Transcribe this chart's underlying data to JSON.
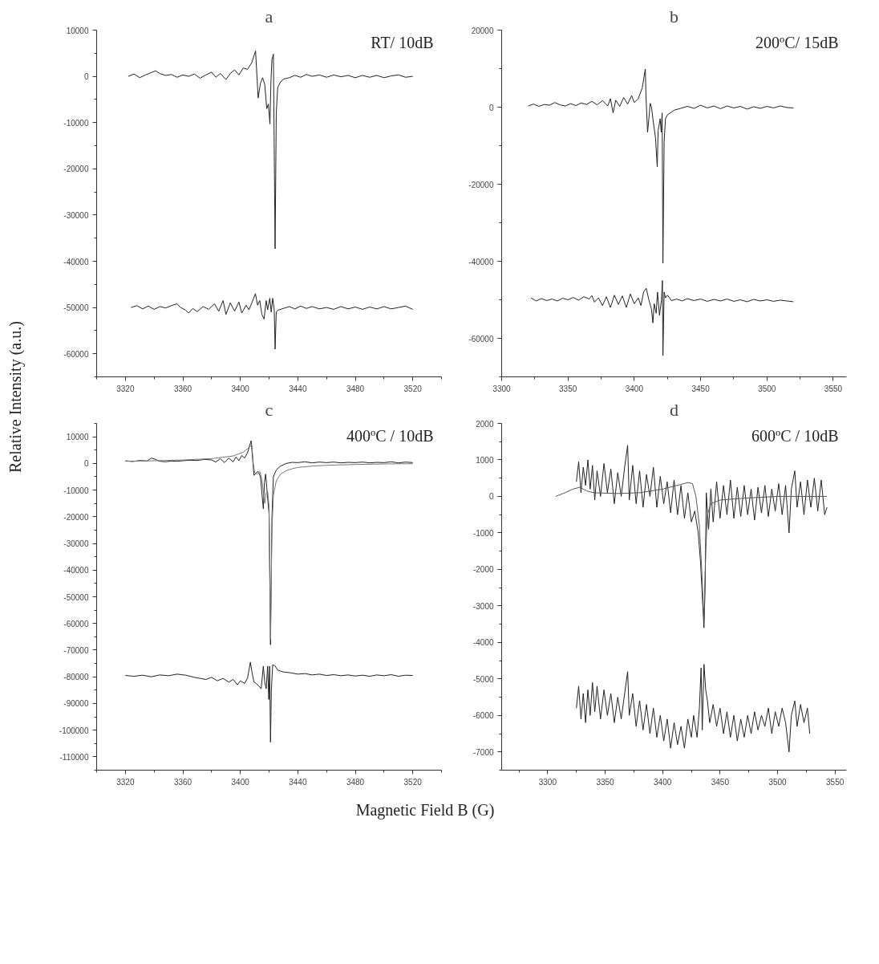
{
  "chart_data": [
    {
      "type": "line",
      "title": "a",
      "ylabel": "Relative Intensity (a.u.)",
      "annotations": [
        "RT/ 10dB"
      ],
      "xlim": [
        3300,
        3540
      ],
      "xticks": [
        3320,
        3360,
        3400,
        3440,
        3480,
        3520
      ],
      "ylim": [
        -65000,
        10000
      ],
      "yticks": [
        -60000,
        -50000,
        -40000,
        -30000,
        -20000,
        -10000,
        0,
        10000
      ],
      "series": [
        {
          "color": "#222222",
          "x": [
            3322,
            3326,
            3330,
            3334,
            3338,
            3341,
            3344,
            3348,
            3352,
            3356,
            3360,
            3364,
            3368,
            3372,
            3376,
            3380,
            3383,
            3386,
            3390,
            3393,
            3396,
            3399,
            3402,
            3405,
            3408,
            3410.6,
            3412.4,
            3414,
            3415.5,
            3417,
            3418.4,
            3419.5,
            3420.6,
            3421.3,
            3422,
            3423,
            3424.2,
            3425,
            3426,
            3428,
            3430,
            3434,
            3438,
            3442,
            3446,
            3450,
            3455,
            3460,
            3465,
            3470,
            3475,
            3480,
            3485,
            3490,
            3495,
            3500,
            3505,
            3510,
            3515,
            3520
          ],
          "values": [
            0,
            500,
            -300,
            300,
            800,
            1200,
            600,
            200,
            400,
            -200,
            300,
            0,
            500,
            -400,
            300,
            900,
            -200,
            600,
            -700,
            600,
            1400,
            300,
            1800,
            1500,
            3000,
            5500,
            -4700,
            -1500,
            -300,
            -1800,
            -7000,
            -6000,
            -10300,
            -1000,
            3600,
            4800,
            -37300,
            -8000,
            -2400,
            -1200,
            -600,
            -300,
            200,
            -200,
            400,
            0,
            300,
            -200,
            300,
            -100,
            200,
            -300,
            200,
            -200,
            200,
            -300,
            100,
            300,
            -200,
            0
          ]
        },
        {
          "color": "#222222",
          "x": [
            3324,
            3328,
            3332,
            3336,
            3340,
            3344,
            3348,
            3352,
            3356,
            3358,
            3362,
            3364,
            3367,
            3370,
            3374,
            3378,
            3382,
            3385,
            3388,
            3390,
            3393,
            3396,
            3399,
            3401,
            3404,
            3406,
            3408,
            3410.5,
            3412,
            3413.5,
            3415,
            3416.5,
            3418,
            3419,
            3420.5,
            3421.5,
            3422.5,
            3423.6,
            3424.2,
            3425,
            3426,
            3430,
            3434,
            3438,
            3442,
            3446,
            3450,
            3455,
            3460,
            3465,
            3470,
            3475,
            3480,
            3485,
            3490,
            3495,
            3500,
            3505,
            3510,
            3515,
            3520
          ],
          "values": [
            -50000,
            -49600,
            -50300,
            -49700,
            -50400,
            -49800,
            -50100,
            -49600,
            -49200,
            -49900,
            -50600,
            -51200,
            -50200,
            -50900,
            -49800,
            -50400,
            -49200,
            -50800,
            -48500,
            -51500,
            -49000,
            -50800,
            -48800,
            -51200,
            -49500,
            -50500,
            -49000,
            -47000,
            -49500,
            -48500,
            -51500,
            -52500,
            -48500,
            -50500,
            -48000,
            -51000,
            -48000,
            -50500,
            -59000,
            -51000,
            -50600,
            -50200,
            -49800,
            -50300,
            -49700,
            -50200,
            -49800,
            -50300,
            -50000,
            -50400,
            -49800,
            -50300,
            -49900,
            -50400,
            -49900,
            -50300,
            -49800,
            -50300,
            -50000,
            -49700,
            -50400
          ]
        }
      ]
    },
    {
      "type": "line",
      "title": "b",
      "annotations": [
        "200ºC/ 15dB"
      ],
      "xlim": [
        3300,
        3560
      ],
      "xticks": [
        3300,
        3350,
        3400,
        3450,
        3500,
        3550
      ],
      "ylim": [
        -70000,
        20000
      ],
      "yticks": [
        -60000,
        -40000,
        -20000,
        0,
        20000
      ],
      "series": [
        {
          "color": "#222222",
          "x": [
            3320,
            3324,
            3328,
            3332,
            3336,
            3340,
            3344,
            3348,
            3352,
            3356,
            3360,
            3364,
            3368,
            3372,
            3376,
            3380,
            3382,
            3384,
            3386,
            3389,
            3392,
            3395,
            3398,
            3400,
            3403,
            3406,
            3408.3,
            3408.8,
            3410,
            3411,
            3412,
            3413,
            3414,
            3416,
            3417.3,
            3418,
            3419.5,
            3420.3,
            3421,
            3421.6,
            3422.5,
            3423.5,
            3425,
            3430,
            3435,
            3440,
            3445,
            3450,
            3455,
            3460,
            3465,
            3470,
            3475,
            3480,
            3485,
            3490,
            3495,
            3500,
            3505,
            3510,
            3515,
            3520
          ],
          "values": [
            300,
            800,
            200,
            700,
            500,
            1200,
            600,
            300,
            900,
            400,
            1100,
            700,
            1500,
            600,
            1700,
            300,
            2200,
            -1500,
            1800,
            200,
            2500,
            800,
            3000,
            1200,
            2200,
            5000,
            9900,
            3000,
            -6500,
            -3000,
            1000,
            0,
            -3000,
            -8000,
            -15500,
            -6000,
            -3000,
            -6500,
            -1500,
            -40500,
            -9000,
            -3000,
            -2000,
            -800,
            -300,
            200,
            -300,
            500,
            -200,
            300,
            -400,
            300,
            -200,
            200,
            -500,
            100,
            -300,
            200,
            -200,
            300,
            -100,
            -200
          ]
        },
        {
          "color": "#222222",
          "x": [
            3322,
            3326,
            3330,
            3334,
            3338,
            3342,
            3346,
            3350,
            3354,
            3358,
            3362,
            3366,
            3368,
            3370,
            3373,
            3376,
            3379,
            3382,
            3385,
            3388,
            3391,
            3394,
            3397,
            3400,
            3403,
            3405,
            3407,
            3409,
            3411,
            3413,
            3414,
            3415,
            3416.5,
            3417.5,
            3419,
            3420.5,
            3421.2,
            3421.6,
            3422.5,
            3423.5,
            3425,
            3428,
            3432,
            3436,
            3440,
            3445,
            3450,
            3455,
            3460,
            3465,
            3470,
            3475,
            3480,
            3485,
            3490,
            3495,
            3500,
            3505,
            3510,
            3515,
            3520
          ],
          "values": [
            -49500,
            -50300,
            -49700,
            -50200,
            -49800,
            -50300,
            -49600,
            -50000,
            -49400,
            -50100,
            -49200,
            -49800,
            -48900,
            -50600,
            -49500,
            -51500,
            -49200,
            -52000,
            -48800,
            -51200,
            -49000,
            -52000,
            -48500,
            -51000,
            -49500,
            -51500,
            -48000,
            -47000,
            -50000,
            -52500,
            -56000,
            -51000,
            -53500,
            -48000,
            -54000,
            -50000,
            -45000,
            -64500,
            -48000,
            -49500,
            -48800,
            -50200,
            -49800,
            -50300,
            -49700,
            -50200,
            -49800,
            -50400,
            -49900,
            -50300,
            -49800,
            -50400,
            -50000,
            -50500,
            -49900,
            -50300,
            -50000,
            -50400,
            -50100,
            -50300,
            -50500
          ]
        }
      ]
    },
    {
      "type": "line",
      "title": "c",
      "annotations": [
        "400ºC / 10dB"
      ],
      "xlim": [
        3300,
        3540
      ],
      "xticks": [
        3320,
        3360,
        3400,
        3440,
        3480,
        3520
      ],
      "ylim": [
        -115000,
        15000
      ],
      "yticks": [
        -110000,
        -100000,
        -90000,
        -80000,
        -70000,
        -60000,
        -50000,
        -40000,
        -30000,
        -20000,
        -10000,
        0,
        10000
      ],
      "series": [
        {
          "color": "#222222",
          "x": [
            3320,
            3325,
            3330,
            3335,
            3338,
            3341,
            3344,
            3348,
            3352,
            3356,
            3360,
            3365,
            3370,
            3375,
            3380,
            3383,
            3386,
            3389,
            3392,
            3395,
            3397,
            3399,
            3401,
            3403,
            3405,
            3407.5,
            3409.5,
            3411,
            3412.3,
            3414,
            3416,
            3416.8,
            3417.6,
            3418.4,
            3419,
            3420,
            3421,
            3422,
            3423,
            3425,
            3428,
            3432,
            3436,
            3440,
            3445,
            3450,
            3455,
            3460,
            3465,
            3470,
            3475,
            3480,
            3485,
            3490,
            3495,
            3500,
            3505,
            3510,
            3515,
            3520
          ],
          "values": [
            1000,
            700,
            1100,
            900,
            2000,
            1500,
            800,
            600,
            900,
            800,
            1000,
            1200,
            1100,
            1500,
            1300,
            500,
            1800,
            300,
            2000,
            600,
            2400,
            1000,
            3000,
            2000,
            4000,
            8500,
            -4500,
            -3500,
            -3000,
            -5000,
            -17000,
            -7000,
            -4000,
            -9000,
            -13000,
            -19000,
            -68000,
            -20000,
            -5000,
            -2500,
            -1000,
            0,
            400,
            300,
            600,
            200,
            500,
            300,
            500,
            200,
            400,
            300,
            500,
            200,
            400,
            300,
            600,
            200,
            500,
            300
          ]
        },
        {
          "color": "#777777",
          "x": [
            3320,
            3340,
            3360,
            3380,
            3395,
            3402,
            3406,
            3408,
            3409,
            3410,
            3412,
            3413.5,
            3415,
            3417,
            3418,
            3419,
            3420,
            3421,
            3422,
            3423,
            3425,
            3428,
            3432,
            3436,
            3440,
            3450,
            3460,
            3480,
            3500,
            3520
          ],
          "values": [
            800,
            1000,
            1300,
            1800,
            2800,
            4200,
            6000,
            7000,
            0,
            -3500,
            -4000,
            -3000,
            -6000,
            -15000,
            -11000,
            -10500,
            -16000,
            -66000,
            -25000,
            -12000,
            -6500,
            -4000,
            -2700,
            -2000,
            -1500,
            -1000,
            -700,
            -400,
            -200,
            -100
          ]
        },
        {
          "color": "#222222",
          "x": [
            3320,
            3326,
            3332,
            3338,
            3344,
            3350,
            3356,
            3362,
            3368,
            3372,
            3376,
            3380,
            3384,
            3388,
            3392,
            3395,
            3398,
            3400,
            3403,
            3405,
            3407,
            3408,
            3409.5,
            3411,
            3413,
            3414.5,
            3416,
            3417,
            3418,
            3419,
            3419.8,
            3420.4,
            3421,
            3421.6,
            3422.5,
            3424,
            3426,
            3430,
            3435,
            3440,
            3445,
            3450,
            3455,
            3460,
            3465,
            3470,
            3475,
            3480,
            3485,
            3490,
            3495,
            3500,
            3505,
            3510,
            3515,
            3520
          ],
          "values": [
            -79500,
            -79800,
            -79400,
            -80000,
            -79300,
            -79600,
            -79000,
            -79400,
            -80200,
            -80600,
            -81000,
            -80200,
            -81500,
            -80600,
            -82000,
            -81000,
            -83000,
            -81500,
            -82500,
            -80500,
            -74500,
            -78000,
            -82000,
            -82500,
            -83500,
            -84500,
            -76000,
            -82000,
            -84500,
            -76000,
            -88500,
            -76000,
            -104500,
            -85000,
            -75500,
            -75800,
            -77500,
            -78200,
            -78500,
            -79000,
            -78800,
            -79300,
            -79000,
            -79500,
            -79200,
            -79600,
            -79300,
            -79700,
            -79400,
            -79800,
            -79300,
            -79600,
            -79200,
            -79800,
            -79400,
            -79500
          ]
        }
      ]
    },
    {
      "type": "line",
      "title": "d",
      "xlabel": "Magnetic Field B (G)",
      "annotations": [
        "600ºC / 10dB"
      ],
      "xlim": [
        3260,
        3560
      ],
      "xticks": [
        3300,
        3350,
        3400,
        3450,
        3500,
        3550
      ],
      "ylim": [
        -7500,
        2000
      ],
      "yticks": [
        -7000,
        -6000,
        -5000,
        -4000,
        -3000,
        -2000,
        -1000,
        0,
        1000,
        2000
      ],
      "series": [
        {
          "color": "#222222",
          "x": [
            3325,
            3327,
            3329,
            3331,
            3333,
            3335,
            3337,
            3339,
            3341,
            3343,
            3346,
            3349,
            3352,
            3355,
            3358,
            3361,
            3364,
            3367,
            3369.6,
            3371,
            3374,
            3377,
            3380,
            3383,
            3386,
            3389,
            3392,
            3395,
            3398,
            3401,
            3404,
            3407,
            3410,
            3413,
            3416,
            3419,
            3422,
            3425,
            3428,
            3431,
            3433,
            3435,
            3436,
            3437,
            3438,
            3440,
            3442,
            3444,
            3447,
            3450,
            3453,
            3456,
            3459,
            3462,
            3465,
            3468,
            3471,
            3474,
            3477,
            3480,
            3483,
            3486,
            3489,
            3492,
            3495,
            3498,
            3501,
            3504,
            3507,
            3510,
            3512,
            3515,
            3517,
            3520,
            3523,
            3526,
            3529,
            3532,
            3535,
            3538,
            3541,
            3543
          ],
          "values": [
            400,
            950,
            100,
            800,
            300,
            1000,
            200,
            850,
            -100,
            700,
            0,
            900,
            100,
            750,
            -200,
            650,
            0,
            800,
            1400,
            -100,
            850,
            -200,
            700,
            -300,
            600,
            0,
            800,
            -300,
            550,
            -200,
            400,
            -450,
            450,
            -500,
            300,
            -600,
            100,
            -700,
            -400,
            -1000,
            -1800,
            -3000,
            -3600,
            -2500,
            100,
            -900,
            200,
            -700,
            400,
            -600,
            300,
            -500,
            450,
            -600,
            250,
            -550,
            300,
            -500,
            200,
            -650,
            250,
            -450,
            300,
            -550,
            200,
            -400,
            350,
            -500,
            300,
            -1000,
            200,
            700,
            -300,
            400,
            -500,
            450,
            -300,
            500,
            -400,
            450,
            -500,
            -300
          ]
        },
        {
          "color": "#555555",
          "x": [
            3307,
            3315,
            3322,
            3328,
            3334,
            3340,
            3360,
            3380,
            3400,
            3415,
            3422,
            3426,
            3429,
            3432,
            3434,
            3436,
            3437.5,
            3439,
            3442,
            3450,
            3470,
            3500,
            3520,
            3543
          ],
          "values": [
            0,
            100,
            200,
            250,
            150,
            100,
            80,
            100,
            200,
            320,
            380,
            350,
            0,
            -800,
            -2000,
            -3400,
            -1500,
            -500,
            -200,
            -100,
            -50,
            0,
            0,
            0
          ]
        },
        {
          "color": "#222222",
          "x": [
            3325,
            3327,
            3329,
            3331,
            3333,
            3335,
            3337,
            3339,
            3341,
            3343,
            3346,
            3349,
            3352,
            3355,
            3358,
            3361,
            3364,
            3367,
            3369.6,
            3371,
            3374,
            3377,
            3380,
            3383,
            3386,
            3389,
            3392,
            3395,
            3398,
            3401,
            3404,
            3407,
            3410,
            3413,
            3416,
            3419,
            3422,
            3425,
            3427,
            3430,
            3432,
            3433.5,
            3434.5,
            3436,
            3437.5,
            3439,
            3441,
            3444,
            3447,
            3450,
            3453,
            3456,
            3459,
            3462,
            3465,
            3468,
            3471,
            3474,
            3477,
            3480,
            3483,
            3486,
            3489,
            3492,
            3495,
            3498,
            3501,
            3504,
            3507,
            3510,
            3512,
            3515,
            3517,
            3520,
            3523,
            3526,
            3528
          ],
          "values": [
            -5800,
            -5200,
            -6100,
            -5400,
            -6200,
            -5300,
            -6000,
            -5100,
            -5900,
            -5200,
            -6100,
            -5300,
            -6000,
            -5400,
            -6200,
            -5500,
            -6100,
            -5400,
            -4800,
            -6000,
            -5400,
            -6300,
            -5600,
            -6400,
            -5700,
            -6500,
            -5800,
            -6600,
            -6000,
            -6700,
            -6100,
            -6900,
            -6200,
            -6800,
            -6300,
            -6900,
            -6100,
            -6600,
            -6000,
            -6600,
            -5800,
            -4700,
            -6400,
            -4600,
            -5300,
            -5600,
            -6200,
            -5700,
            -6300,
            -5800,
            -6500,
            -5900,
            -6600,
            -6000,
            -6700,
            -6100,
            -6600,
            -6000,
            -6500,
            -5900,
            -6400,
            -6000,
            -6300,
            -5800,
            -6500,
            -5900,
            -6300,
            -5800,
            -6200,
            -7000,
            -6000,
            -5600,
            -6300,
            -5700,
            -6200,
            -5800,
            -6500
          ]
        }
      ]
    }
  ]
}
